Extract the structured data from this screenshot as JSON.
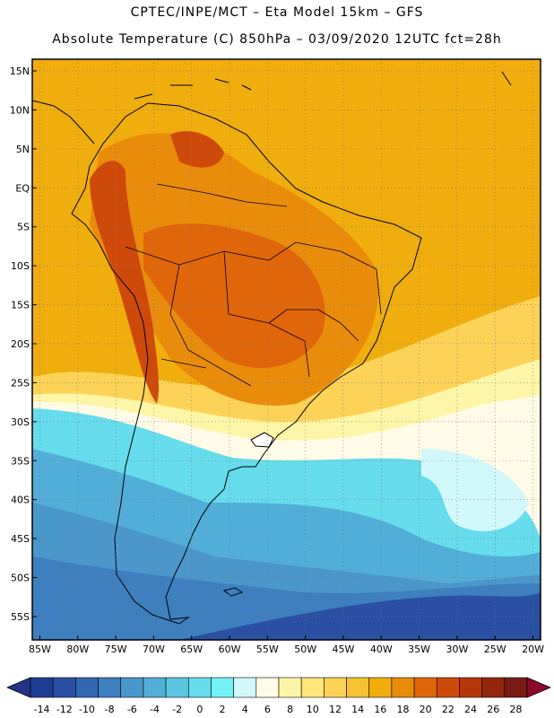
{
  "header": {
    "line1": "CPTEC/INPE/MCT –  Eta Model 15km – GFS",
    "line2": "Absolute Temperature (C) 850hPa – 03/09/2020 12UTC fct=28h"
  },
  "map": {
    "lat_labels": [
      "15N",
      "10N",
      "5N",
      "EQ",
      "5S",
      "10S",
      "15S",
      "20S",
      "25S",
      "30S",
      "35S",
      "40S",
      "45S",
      "50S",
      "55S"
    ],
    "lon_labels": [
      "85W",
      "80W",
      "75W",
      "70W",
      "65W",
      "60W",
      "55W",
      "50W",
      "45W",
      "40W",
      "35W",
      "30W",
      "25W",
      "20W"
    ],
    "lat_values": [
      15,
      10,
      5,
      0,
      -5,
      -10,
      -15,
      -20,
      -25,
      -30,
      -35,
      -40,
      -45,
      -50,
      -55
    ],
    "lon_values": [
      -85,
      -80,
      -75,
      -70,
      -65,
      -60,
      -55,
      -50,
      -45,
      -40,
      -35,
      -30,
      -25,
      -20
    ],
    "extent": {
      "lon_min": -86,
      "lon_max": -19,
      "lat_min": -58,
      "lat_max": 16.5
    }
  },
  "colorbar": {
    "labels": [
      "-14",
      "-12",
      "-10",
      "-8",
      "-6",
      "-4",
      "-2",
      "0",
      "2",
      "4",
      "6",
      "8",
      "10",
      "12",
      "14",
      "16",
      "18",
      "20",
      "22",
      "24",
      "26",
      "28"
    ],
    "colors": [
      "#1f3c94",
      "#2a4fa3",
      "#3366b0",
      "#3d7fbf",
      "#4a97cc",
      "#52aed8",
      "#5cc6e3",
      "#66dcec",
      "#73f2f5",
      "#d2f8fb",
      "#fffbe6",
      "#fff5a6",
      "#ffe57a",
      "#fcd357",
      "#f6c234",
      "#f0ad0e",
      "#e98c0c",
      "#e1660a",
      "#cf4a0a",
      "#b53609",
      "#93260a",
      "#781c14"
    ],
    "under_color": "#25338a",
    "over_color": "#8a0a2a"
  }
}
